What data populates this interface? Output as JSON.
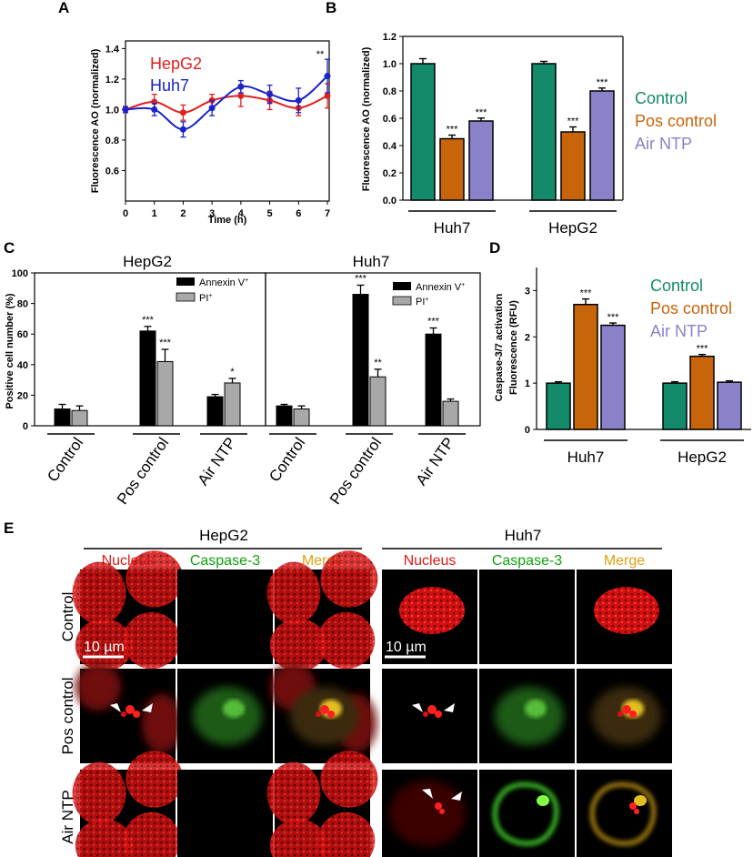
{
  "panel_labels": {
    "A": "A",
    "B": "B",
    "C": "C",
    "D": "D",
    "E": "E"
  },
  "colors": {
    "control": "#138a6a",
    "pos_control": "#c8640a",
    "air_ntp": "#8a82c8",
    "hepg2": "#e02020",
    "huh7": "#1a22c8",
    "annexin": "#000000",
    "pi": "#a8a8a8",
    "nucleus": "#e01818",
    "caspase": "#10a010",
    "merge": "#e0a010"
  },
  "chart_data": [
    {
      "id": "A",
      "type": "line",
      "xlabel": "Time (h)",
      "ylabel": "Fluorescence AO (normalized)",
      "x": [
        0,
        1,
        2,
        3,
        4,
        5,
        6,
        7
      ],
      "xlim": [
        0,
        7
      ],
      "ylim": [
        0.4,
        1.45
      ],
      "yticks": [
        "0.6",
        "0.8",
        "1.0",
        "1.2",
        "1.4"
      ],
      "series": [
        {
          "name": "HepG2",
          "values": [
            1.0,
            1.05,
            0.98,
            1.06,
            1.09,
            1.06,
            1.01,
            1.09
          ],
          "errors": [
            0.02,
            0.05,
            0.05,
            0.04,
            0.07,
            0.06,
            0.05,
            0.08
          ]
        },
        {
          "name": "Huh7",
          "values": [
            1.0,
            1.0,
            0.87,
            1.01,
            1.15,
            1.1,
            1.06,
            1.22
          ],
          "errors": [
            0.02,
            0.04,
            0.05,
            0.05,
            0.04,
            0.06,
            0.08,
            0.11
          ]
        }
      ],
      "annotations": [
        {
          "x": 7,
          "series": "Huh7",
          "text": "**"
        }
      ]
    },
    {
      "id": "B",
      "type": "bar",
      "ylabel": "Fluorescence AO (normalized)",
      "ylim": [
        0,
        1.2
      ],
      "yticks": [
        "0.0",
        "0.2",
        "0.4",
        "0.6",
        "0.8",
        "1.0",
        "1.2"
      ],
      "categories": [
        "Huh7",
        "HepG2"
      ],
      "series": [
        {
          "name": "Control",
          "values": [
            1.0,
            1.0
          ],
          "errors": [
            0.03,
            0.01
          ],
          "sig": [
            "",
            ""
          ]
        },
        {
          "name": "Pos control",
          "values": [
            0.45,
            0.5
          ],
          "errors": [
            0.02,
            0.03
          ],
          "sig": [
            "***",
            "***"
          ]
        },
        {
          "name": "Air NTP",
          "values": [
            0.58,
            0.8
          ],
          "errors": [
            0.015,
            0.015
          ],
          "sig": [
            "***",
            "***"
          ]
        }
      ]
    },
    {
      "id": "C",
      "type": "bar",
      "ylabel": "Positive cell number (%)",
      "ylim": [
        0,
        100
      ],
      "yticks": [
        "0",
        "20",
        "40",
        "60",
        "80",
        "100"
      ],
      "categories": [
        "Control",
        "Pos control",
        "Air NTP"
      ],
      "panels": [
        {
          "title": "HepG2",
          "series": [
            {
              "name": "Annexin V+",
              "values": [
                11,
                62,
                19
              ],
              "errors": [
                3,
                3,
                1.5
              ],
              "sig": [
                "",
                "***",
                ""
              ]
            },
            {
              "name": "PI+",
              "values": [
                10,
                42,
                28
              ],
              "errors": [
                3,
                8,
                3
              ],
              "sig": [
                "",
                "***",
                "*"
              ]
            }
          ]
        },
        {
          "title": "Huh7",
          "series": [
            {
              "name": "Annexin V+",
              "values": [
                13,
                86,
                60
              ],
              "errors": [
                1,
                6,
                4
              ],
              "sig": [
                "",
                "***",
                "***"
              ]
            },
            {
              "name": "PI+",
              "values": [
                11,
                32,
                16
              ],
              "errors": [
                2,
                5,
                1.5
              ],
              "sig": [
                "",
                "**",
                ""
              ]
            }
          ]
        }
      ],
      "legend": [
        {
          "base": "Annexin V",
          "sup": "+"
        },
        {
          "base": "PI",
          "sup": "+"
        }
      ]
    },
    {
      "id": "D",
      "type": "bar",
      "ylabel_line1": "Caspase-3/7 activation",
      "ylabel_line2": "Fluorescence (RFU)",
      "ylim": [
        0,
        3.5
      ],
      "yticks": [
        "0",
        "1",
        "2",
        "3"
      ],
      "categories": [
        "Huh7",
        "HepG2"
      ],
      "series": [
        {
          "name": "Control",
          "values": [
            1.0,
            1.0
          ],
          "errors": [
            0.01,
            0.01
          ],
          "sig": [
            "",
            ""
          ]
        },
        {
          "name": "Pos control",
          "values": [
            2.7,
            1.58
          ],
          "errors": [
            0.1,
            0.02
          ],
          "sig": [
            "***",
            "***"
          ]
        },
        {
          "name": "Air NTP",
          "values": [
            2.25,
            1.02
          ],
          "errors": [
            0.03,
            0.01
          ],
          "sig": [
            "***",
            ""
          ]
        }
      ]
    }
  ],
  "panel_e": {
    "groups": [
      "HepG2",
      "Huh7"
    ],
    "columns": [
      "Nucleus",
      "Caspase-3",
      "Merge"
    ],
    "rows": [
      "Control",
      "Pos control",
      "Air NTP"
    ],
    "scale_bar": "10 µm"
  }
}
